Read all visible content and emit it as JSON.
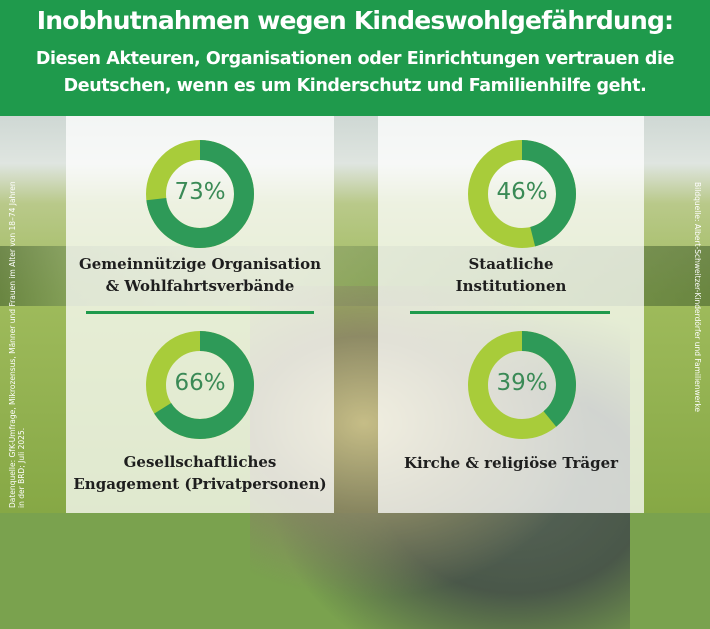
{
  "header": {
    "title": "Inobhutnahmen wegen Kindeswohlgefährdung:",
    "subtitle_line1": "Diesen Akteuren, Organisationen oder Einrichtungen vertrauen die",
    "subtitle_line2": "Deutschen, wenn es um Kinderschutz und Familienhilfe geht."
  },
  "colors": {
    "header_green": "#1f9a4c",
    "donut_dark": "#2e9a58",
    "donut_light": "#a8cc3a",
    "percent_text": "#3a8a56"
  },
  "chart_data": {
    "type": "pie",
    "items": [
      {
        "value_label": "73%",
        "value": 73,
        "label_line1": "Gemeinnützige Organisation",
        "label_line2": "& Wohlfahrtsverbände"
      },
      {
        "value_label": "46%",
        "value": 46,
        "label_line1": "Staatliche",
        "label_line2": "Institutionen"
      },
      {
        "value_label": "66%",
        "value": 66,
        "label_line1": "Gesellschaftliches",
        "label_line2": "Engagement (Privatpersonen)"
      },
      {
        "value_label": "39%",
        "value": 39,
        "label_line1": "Kirche & religiöse Träger",
        "label_line2": ""
      }
    ]
  },
  "source": {
    "line1": "Datenquelle: GfK-Umfrage, Mikrozensus, Männer und Frauen im Alter von 18–74 Jahren",
    "line2": "in der BRD; Juli 2025."
  },
  "image_credit": "Bildquelle: Albert-Schweitzer-Kinderdörfer und Familienwerke"
}
